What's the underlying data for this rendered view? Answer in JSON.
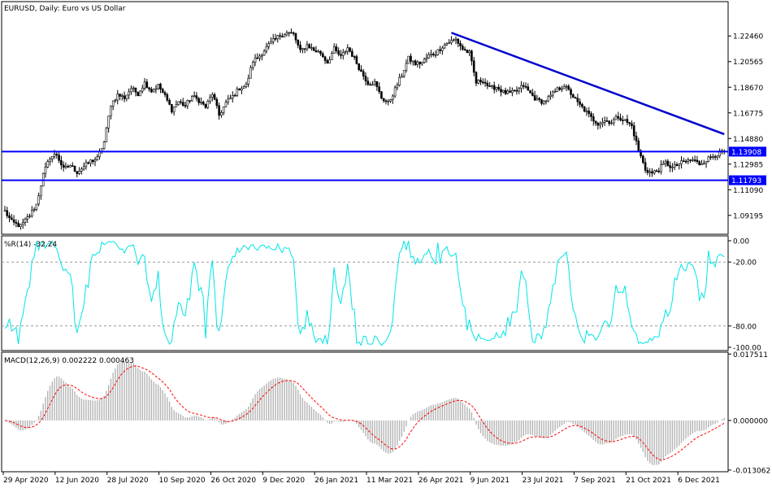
{
  "colors": {
    "candle": "#000000",
    "hline": "#0000ff",
    "trend": "#0000cc",
    "wpr": "#00e5e5",
    "macd_hist": "#b4b4b4",
    "signal": "#ff0000",
    "grid": "#9a9a9a",
    "label_bg": "#0000ff",
    "label_fg": "#ffffff"
  },
  "chart_data": [
    {
      "type": "candlestick",
      "title": "EURUSD, Daily:  Euro vs US Dollar",
      "ylim": [
        1.078,
        1.25
      ],
      "y_ticks": [
        "1.22460",
        "1.20565",
        "1.18670",
        "1.16775",
        "1.14880",
        "1.12985",
        "1.11090",
        "1.09195"
      ],
      "horizontal_lines": [
        {
          "value": 1.13908,
          "label": "1.13908"
        },
        {
          "value": 1.11793,
          "label": "1.11793"
        }
      ],
      "trendline": {
        "from": {
          "x": 198,
          "y": 1.227
        },
        "to": {
          "x": 319,
          "y": 1.152
        }
      },
      "x_labels": [
        "29 Apr 2020",
        "12 Jun 2020",
        "28 Jul 2020",
        "10 Sep 2020",
        "26 Oct 2020",
        "9 Dec 2020",
        "26 Jan 2021",
        "11 Mar 2021",
        "26 Apr 2021",
        "9 Jun 2021",
        "23 Jul 2021",
        "7 Sep 2021",
        "21 Oct 2021",
        "6 Dec 2021"
      ],
      "anchors": [
        [
          0,
          1.095
        ],
        [
          3,
          1.087
        ],
        [
          7,
          1.084
        ],
        [
          11,
          1.092
        ],
        [
          14,
          1.1
        ],
        [
          17,
          1.122
        ],
        [
          20,
          1.135
        ],
        [
          23,
          1.137
        ],
        [
          26,
          1.126
        ],
        [
          29,
          1.129
        ],
        [
          32,
          1.124
        ],
        [
          35,
          1.128
        ],
        [
          38,
          1.132
        ],
        [
          41,
          1.134
        ],
        [
          44,
          1.146
        ],
        [
          47,
          1.174
        ],
        [
          50,
          1.181
        ],
        [
          53,
          1.179
        ],
        [
          56,
          1.186
        ],
        [
          59,
          1.182
        ],
        [
          62,
          1.19
        ],
        [
          65,
          1.184
        ],
        [
          68,
          1.188
        ],
        [
          71,
          1.18
        ],
        [
          74,
          1.17
        ],
        [
          77,
          1.176
        ],
        [
          80,
          1.173
        ],
        [
          83,
          1.18
        ],
        [
          86,
          1.177
        ],
        [
          89,
          1.172
        ],
        [
          92,
          1.182
        ],
        [
          95,
          1.166
        ],
        [
          98,
          1.175
        ],
        [
          101,
          1.18
        ],
        [
          104,
          1.186
        ],
        [
          107,
          1.188
        ],
        [
          110,
          1.206
        ],
        [
          113,
          1.21
        ],
        [
          116,
          1.216
        ],
        [
          119,
          1.221
        ],
        [
          122,
          1.225
        ],
        [
          125,
          1.227
        ],
        [
          128,
          1.226
        ],
        [
          131,
          1.213
        ],
        [
          134,
          1.218
        ],
        [
          137,
          1.214
        ],
        [
          140,
          1.212
        ],
        [
          143,
          1.205
        ],
        [
          146,
          1.215
        ],
        [
          149,
          1.209
        ],
        [
          152,
          1.216
        ],
        [
          155,
          1.208
        ],
        [
          158,
          1.198
        ],
        [
          161,
          1.19
        ],
        [
          164,
          1.19
        ],
        [
          167,
          1.179
        ],
        [
          170,
          1.175
        ],
        [
          173,
          1.185
        ],
        [
          176,
          1.196
        ],
        [
          179,
          1.208
        ],
        [
          182,
          1.204
        ],
        [
          185,
          1.205
        ],
        [
          188,
          1.21
        ],
        [
          191,
          1.212
        ],
        [
          194,
          1.217
        ],
        [
          197,
          1.22
        ],
        [
          200,
          1.222
        ],
        [
          203,
          1.215
        ],
        [
          206,
          1.212
        ],
        [
          209,
          1.19
        ],
        [
          212,
          1.192
        ],
        [
          215,
          1.186
        ],
        [
          218,
          1.187
        ],
        [
          221,
          1.183
        ],
        [
          224,
          1.182
        ],
        [
          227,
          1.184
        ],
        [
          230,
          1.188
        ],
        [
          233,
          1.182
        ],
        [
          236,
          1.177
        ],
        [
          239,
          1.176
        ],
        [
          242,
          1.18
        ],
        [
          245,
          1.185
        ],
        [
          248,
          1.188
        ],
        [
          251,
          1.182
        ],
        [
          254,
          1.175
        ],
        [
          257,
          1.17
        ],
        [
          260,
          1.164
        ],
        [
          263,
          1.16
        ],
        [
          266,
          1.162
        ],
        [
          269,
          1.161
        ],
        [
          272,
          1.165
        ],
        [
          275,
          1.162
        ],
        [
          278,
          1.158
        ],
        [
          281,
          1.14
        ],
        [
          284,
          1.126
        ],
        [
          287,
          1.123
        ],
        [
          290,
          1.126
        ],
        [
          293,
          1.131
        ],
        [
          296,
          1.127
        ],
        [
          299,
          1.13
        ],
        [
          302,
          1.132
        ],
        [
          305,
          1.133
        ],
        [
          308,
          1.13
        ],
        [
          311,
          1.133
        ],
        [
          314,
          1.136
        ],
        [
          317,
          1.138
        ],
        [
          319,
          1.139
        ]
      ]
    },
    {
      "type": "line",
      "name": "%R(14) -32.24",
      "ylim": [
        -100,
        0
      ],
      "y_ticks": [
        {
          "value": 0,
          "label": "0.00"
        },
        {
          "value": -20,
          "label": "-20.00"
        },
        {
          "value": -80,
          "label": "-80.00"
        },
        {
          "value": -100,
          "label": "-100.00"
        }
      ],
      "levels": [
        -20,
        -80
      ]
    },
    {
      "type": "bar",
      "name": "MACD(12,26,9) 0.002222 0.000463",
      "ylim": [
        -0.0135,
        0.018
      ],
      "y_ticks": [
        {
          "value": 0.017511,
          "label": "0.017511"
        },
        {
          "value": 0.0,
          "label": "0.000000"
        },
        {
          "value": -0.013062,
          "label": "-0.013062"
        }
      ]
    }
  ]
}
